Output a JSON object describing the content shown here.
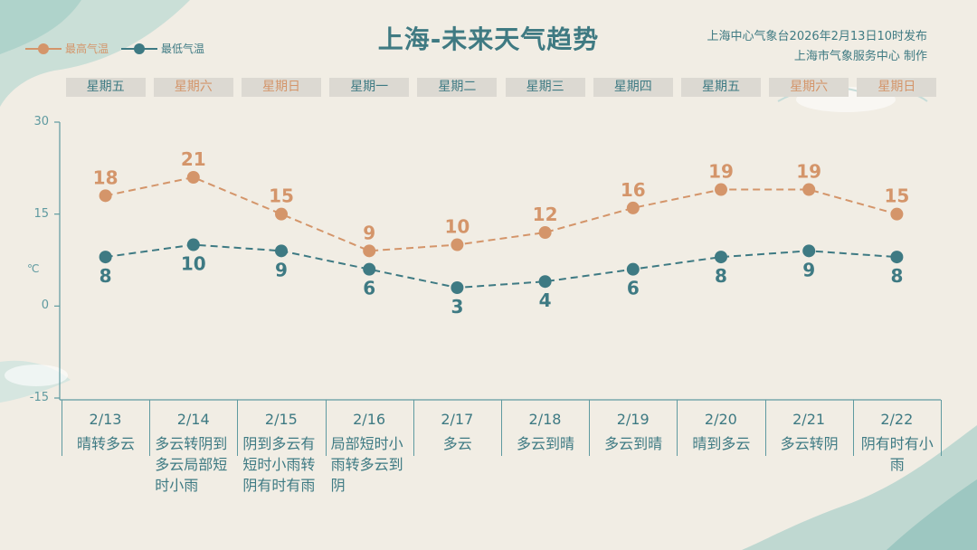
{
  "header": {
    "title": "上海-未来天气趋势",
    "issuer_line1": "上海中心气象台2026年2月13日10时发布",
    "issuer_line2": "上海市气象服务中心 制作"
  },
  "legend": {
    "high_label": "最高气温",
    "low_label": "最低气温"
  },
  "y_axis": {
    "unit": "℃",
    "ticks": [
      "30",
      "15",
      "0",
      "-15"
    ]
  },
  "weekdays": [
    "星期五",
    "星期六",
    "星期日",
    "星期一",
    "星期二",
    "星期三",
    "星期四",
    "星期五",
    "星期六",
    "星期日"
  ],
  "forecast": [
    {
      "date": "2/13",
      "desc": "晴转多云"
    },
    {
      "date": "2/14",
      "desc": "多云转阴到多云局部短时小雨"
    },
    {
      "date": "2/15",
      "desc": "阴到多云有短时小雨转阴有时有雨"
    },
    {
      "date": "2/16",
      "desc": "局部短时小雨转多云到阴"
    },
    {
      "date": "2/17",
      "desc": "多云"
    },
    {
      "date": "2/18",
      "desc": "多云到晴"
    },
    {
      "date": "2/19",
      "desc": "多云到晴"
    },
    {
      "date": "2/20",
      "desc": "晴到多云"
    },
    {
      "date": "2/21",
      "desc": "多云转阴"
    },
    {
      "date": "2/22",
      "desc": "阴有时有小雨"
    }
  ],
  "colors": {
    "high": "#d4956a",
    "low": "#3e7a83",
    "title": "#3f7a82",
    "weekend_text": "#d4956a",
    "weekday_text": "#3e7a83",
    "axis": "#5f9aa0"
  },
  "chart_data": {
    "type": "line",
    "x": [
      "2/13",
      "2/14",
      "2/15",
      "2/16",
      "2/17",
      "2/18",
      "2/19",
      "2/20",
      "2/21",
      "2/22"
    ],
    "series": [
      {
        "name": "最高气温",
        "values": [
          18,
          21,
          15,
          9,
          10,
          12,
          16,
          19,
          19,
          15
        ]
      },
      {
        "name": "最低气温",
        "values": [
          8,
          10,
          9,
          6,
          3,
          4,
          6,
          8,
          9,
          8
        ]
      }
    ],
    "ylabel": "℃",
    "ylim": [
      -15,
      30
    ],
    "yticks": [
      30,
      15,
      0,
      -15
    ],
    "line_style": "dashed",
    "grid": false,
    "legend_position": "top-left"
  }
}
